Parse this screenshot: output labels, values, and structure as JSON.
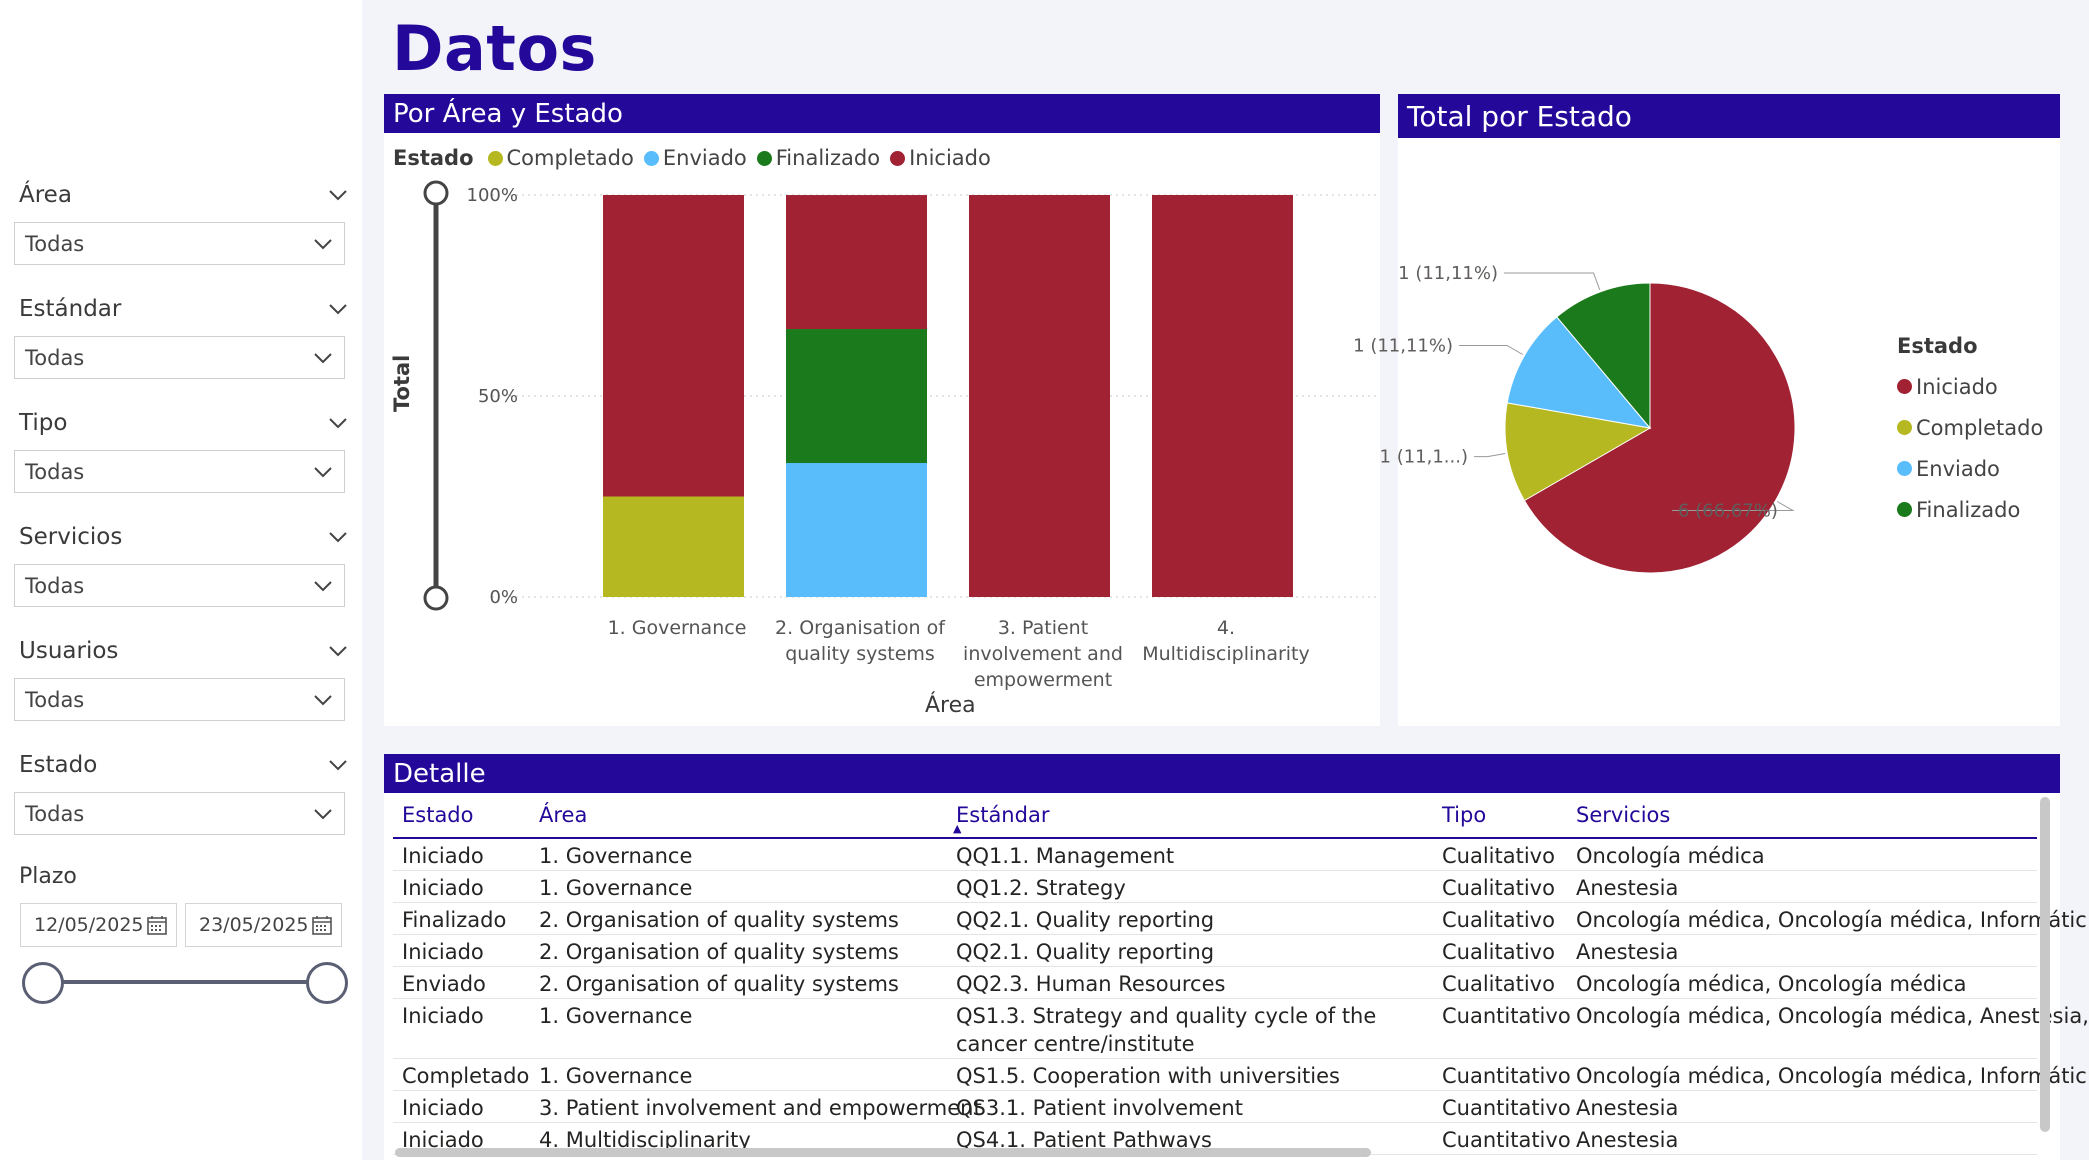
{
  "page": {
    "title": "Datos"
  },
  "filters": [
    {
      "label": "Área",
      "value": "Todas"
    },
    {
      "label": "Estándar",
      "value": "Todas"
    },
    {
      "label": "Tipo",
      "value": "Todas"
    },
    {
      "label": "Servicios",
      "value": "Todas"
    },
    {
      "label": "Usuarios",
      "value": "Todas"
    },
    {
      "label": "Estado",
      "value": "Todas"
    }
  ],
  "plazo": {
    "label": "Plazo",
    "start": "12/05/2025",
    "end": "23/05/2025"
  },
  "colors": {
    "Completado": "#b5b820",
    "Enviado": "#59bdfc",
    "Finalizado": "#1b7a1b",
    "Iniciado": "#a02233",
    "accent": "#24089a"
  },
  "bar_panel": {
    "title": "Por Área y Estado",
    "legend_title": "Estado",
    "legend": [
      "Completado",
      "Enviado",
      "Finalizado",
      "Iniciado"
    ]
  },
  "pie_panel": {
    "title": "Total por Estado",
    "legend_title": "Estado",
    "legend": [
      "Iniciado",
      "Completado",
      "Enviado",
      "Finalizado"
    ]
  },
  "chart_data": [
    {
      "type": "bar",
      "stacked": "percent",
      "title": "Por Área y Estado",
      "xlabel": "Área",
      "ylabel": "Total",
      "yticks": [
        "0%",
        "50%",
        "100%"
      ],
      "categories": [
        "1. Governance",
        "2. Organisation of quality systems",
        "3. Patient involvement and empowerment",
        "4. Multidisciplinarity"
      ],
      "series": [
        {
          "name": "Completado",
          "values": [
            0.25,
            0,
            0,
            0
          ]
        },
        {
          "name": "Enviado",
          "values": [
            0,
            0.3333,
            0,
            0
          ]
        },
        {
          "name": "Finalizado",
          "values": [
            0,
            0.3333,
            0,
            0
          ]
        },
        {
          "name": "Iniciado",
          "values": [
            0.75,
            0.3333,
            1,
            1
          ]
        }
      ],
      "legend": "top-left",
      "grid": true
    },
    {
      "type": "pie",
      "title": "Total por Estado",
      "slices": [
        {
          "name": "Iniciado",
          "value": 6,
          "label": "6 (66,67%)"
        },
        {
          "name": "Completado",
          "value": 1,
          "label": "1 (11,1...)"
        },
        {
          "name": "Enviado",
          "value": 1,
          "label": "1 (11,11%)"
        },
        {
          "name": "Finalizado",
          "value": 1,
          "label": "1 (11,11%)"
        }
      ],
      "legend": "right"
    }
  ],
  "detail": {
    "title": "Detalle",
    "columns": [
      "Estado",
      "Área",
      "Estándar",
      "Tipo",
      "Servicios"
    ],
    "rows": [
      [
        "Iniciado",
        "1. Governance",
        "QQ1.1. Management",
        "Cualitativo",
        "Oncología médica"
      ],
      [
        "Iniciado",
        "1. Governance",
        "QQ1.2. Strategy",
        "Cualitativo",
        "Anestesia"
      ],
      [
        "Finalizado",
        "2. Organisation of quality systems",
        "QQ2.1. Quality reporting",
        "Cualitativo",
        "Oncología médica, Oncología médica, Informátic"
      ],
      [
        "Iniciado",
        "2. Organisation of quality systems",
        "QQ2.1. Quality reporting",
        "Cualitativo",
        "Anestesia"
      ],
      [
        "Enviado",
        "2. Organisation of quality systems",
        "QQ2.3. Human Resources",
        "Cualitativo",
        "Oncología médica, Oncología médica"
      ],
      [
        "Iniciado",
        "1. Governance",
        "QS1.3. Strategy and quality cycle of the cancer centre/institute",
        "Cuantitativo",
        "Oncología médica, Oncología médica, Anestesia,"
      ],
      [
        "Completado",
        "1. Governance",
        "QS1.5. Cooperation with universities",
        "Cuantitativo",
        "Oncología médica, Oncología médica, Informátic"
      ],
      [
        "Iniciado",
        "3. Patient involvement and empowerment",
        "QS3.1. Patient involvement",
        "Cuantitativo",
        "Anestesia"
      ],
      [
        "Iniciado",
        "4. Multidisciplinarity",
        "QS4.1. Patient Pathways",
        "Cuantitativo",
        "Anestesia"
      ]
    ]
  }
}
